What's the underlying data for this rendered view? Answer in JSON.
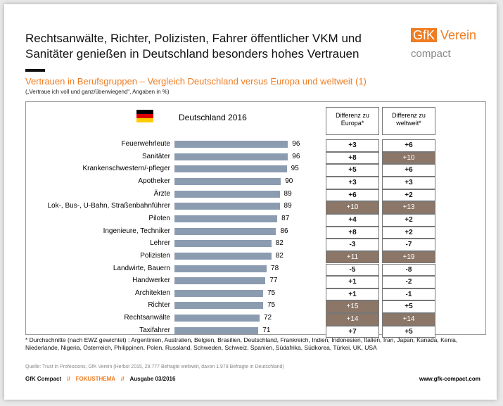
{
  "header": {
    "title_lines": [
      "Rechtsanwälte, Richter, Polizisten, Fahrer öffentlicher VKM und",
      "Sanitäter genießen in Deutschland besonders hohes Vertrauen"
    ],
    "logo_brand": "GfK",
    "logo_name": "Verein",
    "logo_sub": "compact"
  },
  "subtitle": "Vertrauen in Berufsgruppen – Vergleich Deutschland versus Europa und weltweit (1)",
  "note": "(„Vertraue ich voll und ganz/überwiegend“,  Angaben in %)",
  "chart_data": {
    "type": "bar",
    "orientation": "horizontal",
    "title": "Deutschland 2016",
    "categories": [
      "Feuerwehrleute",
      "Sanitäter",
      "Krankenschwestern/-pfleger",
      "Apotheker",
      "Ärzte",
      "Lok-, Bus-, U-Bahn, Straßenbahnführer",
      "Piloten",
      "Ingenieure, Techniker",
      "Lehrer",
      "Polizisten",
      "Landwirte, Bauern",
      "Handwerker",
      "Architekten",
      "Richter",
      "Rechtsanwälte",
      "Taxifahrer"
    ],
    "values": [
      96,
      96,
      95,
      90,
      89,
      89,
      87,
      86,
      82,
      82,
      78,
      77,
      75,
      75,
      72,
      71
    ],
    "color": "#8c9cb0",
    "xlim": [
      0,
      100
    ]
  },
  "table": {
    "headers": [
      "Differenz zu\nEuropa*",
      "Differenz zu\nweltweit*"
    ],
    "rows": [
      [
        "+3",
        "+6"
      ],
      [
        "+8",
        "+10"
      ],
      [
        "+5",
        "+6"
      ],
      [
        "+3",
        "+3"
      ],
      [
        "+6",
        "+2"
      ],
      [
        "+10",
        "+13"
      ],
      [
        "+4",
        "+2"
      ],
      [
        "+8",
        "+2"
      ],
      [
        "-3",
        "-7"
      ],
      [
        "+11",
        "+19"
      ],
      [
        "-5",
        "-8"
      ],
      [
        "+1",
        "-2"
      ],
      [
        "+1",
        "-1"
      ],
      [
        "+15",
        "+5"
      ],
      [
        "+14",
        "+14"
      ],
      [
        "+7",
        "+5"
      ]
    ],
    "highlight": [
      [
        false,
        false
      ],
      [
        false,
        true
      ],
      [
        false,
        false
      ],
      [
        false,
        false
      ],
      [
        false,
        false
      ],
      [
        true,
        true
      ],
      [
        false,
        false
      ],
      [
        false,
        false
      ],
      [
        false,
        false
      ],
      [
        true,
        true
      ],
      [
        false,
        false
      ],
      [
        false,
        false
      ],
      [
        false,
        false
      ],
      [
        true,
        false
      ],
      [
        true,
        true
      ],
      [
        false,
        false
      ]
    ],
    "highlight_color": "#8b7667"
  },
  "footnote": "* Durchschnitte  (nach EWZ gewichtet) : Argentinien, Australien, Belgien, Brasilien, Deutschland, Frankreich, Indien, Indonesien, Italien, Iran, Japan, Kanada, Kenia, Niederlande, Nigeria, Österreich, Philippinen, Polen, Russland, Schweden, Schweiz, Spanien, Südafrika, Südkorea, Türkei, UK, USA",
  "source": "Quelle: Trust in Professions, GfK Verein (Herbst 2015, 29.777 Befragte weltweit, davon 1.978 Befragte in Deutschland)",
  "footer": {
    "parts": [
      "GfK Compact",
      "//",
      "FOKUSTHEMA",
      "//",
      "Ausgabe 03/2016"
    ],
    "url": "www.gfk-compact.com"
  }
}
